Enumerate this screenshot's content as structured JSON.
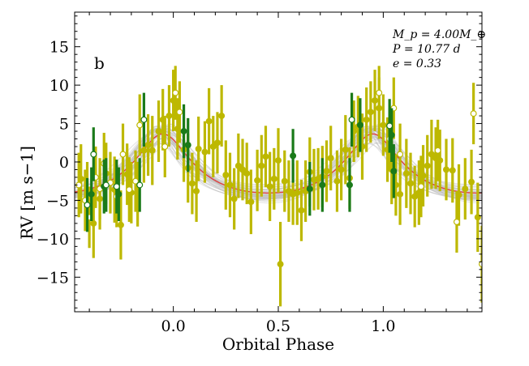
{
  "chart_data": {
    "type": "scatter",
    "panel_label": "b",
    "annotations": [
      "M_p = 4.00M_⊕",
      "P = 10.77 d",
      "e = 0.33"
    ],
    "xlabel": "Orbital Phase",
    "ylabel": "RV [m s−1]",
    "xlim": [
      -0.47,
      1.47
    ],
    "ylim": [
      -19.5,
      19.5
    ],
    "xticks": [
      0.0,
      0.5,
      1.0
    ],
    "xtick_labels": [
      "0.0",
      "0.5",
      "1.0"
    ],
    "yticks": [
      15,
      10,
      5,
      0,
      -5,
      -10,
      -15
    ],
    "ytick_labels": [
      "15",
      "10",
      "5",
      "0",
      "−5",
      "−10",
      "−15"
    ],
    "colors": {
      "olive": "#bdb800",
      "green": "#1a7a1a",
      "model": "#e04040",
      "samples": "#b8b8b8"
    },
    "model": {
      "K": 3.85,
      "e": 0.33,
      "peak_phase": -0.05,
      "offset": -0.45
    },
    "series": [
      {
        "style": "olive-filled",
        "color": "#bdb800",
        "points": [
          [
            -0.44,
            -2.2,
            4.5
          ],
          [
            -0.41,
            -4.2,
            4.2
          ],
          [
            -0.38,
            -8.0,
            4.5
          ],
          [
            -0.35,
            -4.8,
            4.0
          ],
          [
            -0.32,
            -1.5,
            4.0
          ],
          [
            -0.28,
            -3.6,
            4.3
          ],
          [
            -0.25,
            -8.2,
            4.5
          ],
          [
            -0.22,
            -1.6,
            4.0
          ],
          [
            -0.2,
            -4.0,
            4.0
          ],
          [
            -0.17,
            -4.2,
            4.2
          ],
          [
            -0.14,
            1.5,
            4.2
          ],
          [
            -0.12,
            2.2,
            4.0
          ],
          [
            -0.1,
            1.5,
            4.5
          ],
          [
            -0.07,
            4.0,
            4.0
          ],
          [
            -0.05,
            5.5,
            4.0
          ],
          [
            -0.02,
            6.0,
            4.0
          ],
          [
            0.0,
            8.0,
            4.0
          ],
          [
            0.02,
            4.3,
            4.0
          ],
          [
            0.05,
            1.6,
            4.2
          ],
          [
            0.07,
            -0.8,
            4.5
          ],
          [
            0.09,
            -2.8,
            4.0
          ],
          [
            0.11,
            -3.8,
            4.0
          ],
          [
            0.12,
            1.7,
            4.2
          ],
          [
            0.15,
            1.3,
            4.0
          ],
          [
            0.17,
            5.3,
            4.3
          ],
          [
            0.19,
            2.0,
            4.0
          ],
          [
            0.21,
            2.5,
            4.0
          ],
          [
            0.23,
            6.0,
            4.0
          ],
          [
            0.25,
            -1.7,
            4.5
          ],
          [
            0.27,
            -3.0,
            4.2
          ],
          [
            0.29,
            -4.8,
            4.0
          ],
          [
            0.31,
            -0.5,
            4.2
          ],
          [
            0.33,
            -1.0,
            4.0
          ],
          [
            0.35,
            -1.5,
            4.0
          ],
          [
            0.37,
            -5.2,
            4.2
          ],
          [
            0.4,
            -2.4,
            4.0
          ],
          [
            0.42,
            -0.5,
            4.0
          ],
          [
            0.44,
            0.7,
            4.0
          ],
          [
            0.46,
            -3.2,
            4.5
          ],
          [
            0.48,
            -2.2,
            4.0
          ],
          [
            0.5,
            0.2,
            4.2
          ],
          [
            0.51,
            -13.3,
            5.5
          ],
          [
            0.53,
            -2.5,
            4.0
          ],
          [
            0.55,
            -3.8,
            4.0
          ],
          [
            0.57,
            -4.2,
            4.0
          ],
          [
            0.59,
            -4.0,
            4.2
          ],
          [
            0.61,
            -6.3,
            4.0
          ],
          [
            0.63,
            -3.8,
            4.0
          ],
          [
            0.65,
            -1.3,
            4.5
          ],
          [
            0.67,
            -2.3,
            4.0
          ],
          [
            0.69,
            -2.2,
            4.0
          ],
          [
            0.71,
            -1.9,
            4.0
          ],
          [
            0.73,
            -1.2,
            4.0
          ],
          [
            0.75,
            0.5,
            4.2
          ],
          [
            0.78,
            -2.5,
            4.0
          ],
          [
            0.8,
            -1.0,
            4.0
          ],
          [
            0.82,
            1.6,
            4.5
          ],
          [
            0.84,
            -2.1,
            4.0
          ],
          [
            0.86,
            4.0,
            4.0
          ],
          [
            0.88,
            4.6,
            4.0
          ],
          [
            0.9,
            2.0,
            4.3
          ],
          [
            0.92,
            5.5,
            4.2
          ],
          [
            0.94,
            6.5,
            4.0
          ],
          [
            0.96,
            8.0,
            4.0
          ],
          [
            0.98,
            7.0,
            4.0
          ],
          [
            1.0,
            4.8,
            4.0
          ],
          [
            1.02,
            1.6,
            4.2
          ],
          [
            1.04,
            -1.0,
            4.5
          ],
          [
            1.06,
            -3.0,
            4.0
          ],
          [
            1.08,
            -4.2,
            4.0
          ],
          [
            1.11,
            -1.5,
            4.5
          ],
          [
            1.13,
            -2.8,
            4.0
          ],
          [
            1.15,
            -4.5,
            4.0
          ],
          [
            1.17,
            -4.0,
            4.2
          ],
          [
            1.19,
            -1.8,
            4.0
          ],
          [
            1.21,
            -0.5,
            4.0
          ],
          [
            1.23,
            1.0,
            4.5
          ],
          [
            1.25,
            0.5,
            4.0
          ],
          [
            1.27,
            0.2,
            4.0
          ],
          [
            1.3,
            -1.0,
            4.0
          ],
          [
            1.33,
            -1.1,
            4.2
          ],
          [
            1.36,
            -4.3,
            4.0
          ],
          [
            1.39,
            -3.5,
            4.0
          ],
          [
            1.42,
            -2.6,
            4.2
          ],
          [
            1.45,
            -7.2,
            4.5
          ]
        ]
      },
      {
        "style": "olive-open",
        "color": "#bdb800",
        "points": [
          [
            -0.45,
            -3.0,
            4.2
          ],
          [
            -0.42,
            -5.0,
            4.0
          ],
          [
            -0.37,
            -2.0,
            4.0
          ],
          [
            -0.33,
            -0.2,
            4.0
          ],
          [
            -0.3,
            -2.7,
            4.0
          ],
          [
            -0.27,
            -4.5,
            4.0
          ],
          [
            -0.24,
            1.0,
            4.0
          ],
          [
            -0.21,
            -3.6,
            4.2
          ],
          [
            -0.18,
            -2.5,
            4.0
          ],
          [
            -0.16,
            4.8,
            4.0
          ],
          [
            -0.04,
            2.0,
            4.0
          ],
          [
            0.01,
            9.0,
            3.5
          ],
          [
            0.03,
            6.5,
            4.0
          ],
          [
            0.98,
            9.0,
            3.5
          ],
          [
            1.03,
            3.0,
            4.0
          ],
          [
            1.05,
            7.0,
            4.0
          ],
          [
            1.08,
            1.0,
            4.0
          ],
          [
            1.26,
            1.5,
            4.0
          ],
          [
            1.35,
            -7.8,
            4.0
          ],
          [
            1.43,
            6.3,
            4.0
          ],
          [
            1.47,
            -13.3,
            5.0
          ],
          [
            -0.4,
            -7.2,
            4.0
          ],
          [
            -0.35,
            -3.5,
            4.0
          ],
          [
            1.18,
            -3.2,
            4.0
          ]
        ]
      },
      {
        "style": "green-filled",
        "color": "#1a7a1a",
        "points": [
          [
            -0.39,
            -4.2,
            3.5
          ],
          [
            -0.33,
            -3.2,
            3.5
          ],
          [
            -0.26,
            -4.2,
            3.5
          ],
          [
            0.05,
            4.0,
            3.5
          ],
          [
            0.07,
            2.2,
            3.5
          ],
          [
            0.57,
            0.8,
            3.5
          ],
          [
            0.65,
            -3.5,
            3.5
          ],
          [
            0.71,
            -3.0,
            3.5
          ],
          [
            0.84,
            -3.0,
            3.5
          ],
          [
            0.89,
            4.8,
            3.5
          ],
          [
            1.04,
            3.5,
            3.5
          ],
          [
            1.05,
            -1.2,
            3.5
          ]
        ]
      },
      {
        "style": "green-open",
        "color": "#1a7a1a",
        "points": [
          [
            -0.41,
            -5.6,
            3.5
          ],
          [
            -0.38,
            1.0,
            3.5
          ],
          [
            -0.32,
            -3.0,
            3.5
          ],
          [
            -0.27,
            -3.2,
            3.5
          ],
          [
            -0.16,
            -3.0,
            3.5
          ],
          [
            -0.14,
            5.5,
            3.5
          ],
          [
            0.85,
            5.5,
            3.5
          ],
          [
            1.03,
            4.7,
            3.5
          ]
        ]
      }
    ]
  }
}
